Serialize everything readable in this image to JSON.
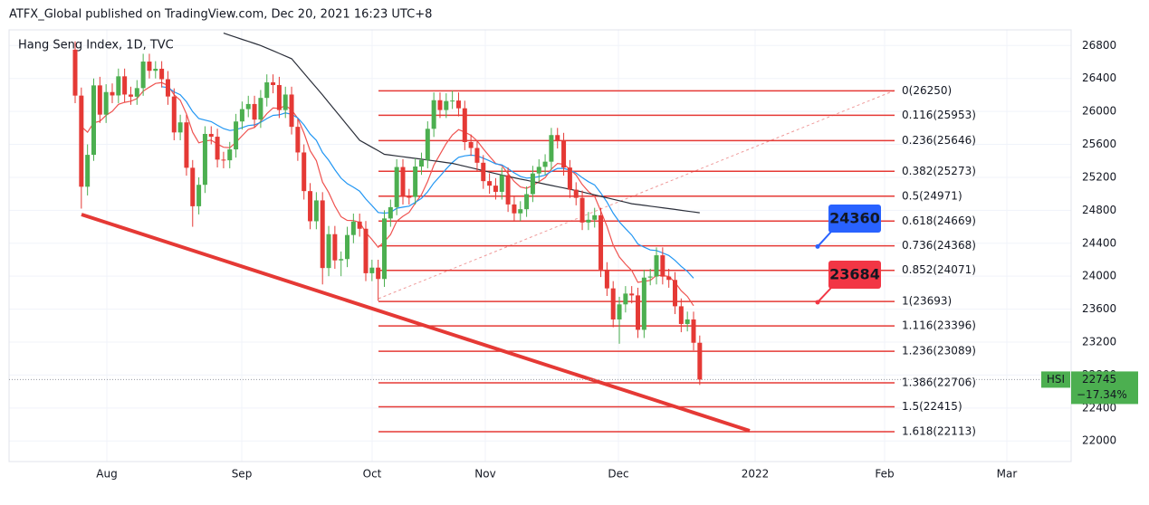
{
  "header": {
    "text": "ATFX_Global published on TradingView.com, Dec 20, 2021 16:23 UTC+8"
  },
  "chart_data": {
    "type": "candlestick",
    "title": "Hang Seng Index, 1D, TVC",
    "x_labels": [
      "Aug",
      "Sep",
      "Oct",
      "Nov",
      "Dec",
      "2022",
      "Feb",
      "Mar"
    ],
    "ylim": [
      21750,
      26990
    ],
    "yticks": [
      22000,
      22400,
      22800,
      23200,
      23600,
      24000,
      24400,
      24800,
      25200,
      25600,
      26000,
      26400,
      26800
    ],
    "up_color": "#4caf50",
    "down_color": "#e53935",
    "candles": {
      "open": [
        26750,
        26192,
        25086,
        25473,
        26316,
        25961,
        26235,
        26194,
        26426,
        26205,
        26179,
        26283,
        26605,
        26493,
        26518,
        26391,
        26181,
        25745,
        25867,
        25316,
        24849,
        25109,
        25727,
        25693,
        25415,
        25407,
        25539,
        25878,
        26028,
        26090,
        25901,
        26164,
        26353,
        26320,
        26017,
        26205,
        25813,
        25502,
        25033,
        24667,
        24920,
        24099,
        24510,
        24192,
        24208,
        24500,
        24663,
        24576,
        24036,
        24104,
        23966,
        24701,
        24838,
        25325,
        24963,
        24962,
        25331,
        25410,
        25789,
        26136,
        26017,
        26126,
        26132,
        26038,
        25628,
        25556,
        25377,
        25154,
        25099,
        25024,
        25225,
        24871,
        24763,
        24813,
        24996,
        25247,
        25327,
        25390,
        25713,
        25650,
        25319,
        25050,
        24951,
        24652,
        24685,
        24740,
        24080,
        23852,
        23475,
        23658,
        23789,
        23767,
        23349,
        23983,
        23996,
        24254,
        23995,
        23955,
        23635,
        23420,
        23475,
        23192
      ],
      "high": [
        26850,
        26290,
        25600,
        26400,
        26420,
        26330,
        26340,
        26520,
        26520,
        26300,
        26380,
        26700,
        26700,
        26610,
        26610,
        26490,
        26280,
        25960,
        25960,
        25410,
        25200,
        25820,
        25820,
        25790,
        25510,
        25630,
        25970,
        26120,
        26190,
        26190,
        26260,
        26450,
        26450,
        26420,
        26300,
        26300,
        25910,
        25600,
        25130,
        25020,
        25020,
        24610,
        24610,
        24300,
        24600,
        24760,
        24760,
        24670,
        24200,
        24200,
        24800,
        24930,
        25420,
        25420,
        25060,
        25430,
        25500,
        25880,
        26230,
        26230,
        26220,
        26250,
        26230,
        26130,
        25720,
        25650,
        25470,
        25250,
        25190,
        25320,
        25320,
        24970,
        24910,
        25090,
        25340,
        25420,
        25480,
        25800,
        25800,
        25740,
        25410,
        25140,
        25040,
        24780,
        24830,
        24830,
        24170,
        23940,
        23750,
        23880,
        23880,
        23860,
        24080,
        24090,
        24350,
        24350,
        24090,
        24050,
        23730,
        23570,
        23570,
        23280
      ],
      "low": [
        26100,
        24820,
        24980,
        25400,
        25860,
        25860,
        26100,
        26100,
        26110,
        26080,
        26080,
        26190,
        26400,
        26400,
        26290,
        26080,
        25650,
        25650,
        25220,
        24600,
        24750,
        25010,
        25600,
        25320,
        25310,
        25310,
        25440,
        25780,
        25930,
        25800,
        25800,
        26060,
        26220,
        25920,
        25920,
        25720,
        25400,
        24930,
        24570,
        24570,
        23900,
        24000,
        24090,
        24000,
        24110,
        24400,
        24480,
        23940,
        23940,
        23700,
        23870,
        24600,
        24740,
        24870,
        24870,
        24870,
        25230,
        25310,
        25690,
        25920,
        25920,
        26030,
        25940,
        25530,
        25460,
        25280,
        25060,
        25000,
        24930,
        24930,
        24780,
        24670,
        24670,
        24720,
        24900,
        25150,
        25230,
        25290,
        25550,
        25220,
        24950,
        24860,
        24560,
        24560,
        24590,
        23990,
        23760,
        23380,
        23180,
        23560,
        23670,
        23250,
        23250,
        23890,
        23900,
        23900,
        23860,
        23540,
        23320,
        23330,
        23100,
        22680
      ],
      "close": [
        26192,
        25086,
        25473,
        26316,
        25961,
        26235,
        26194,
        26426,
        26205,
        26179,
        26283,
        26605,
        26493,
        26518,
        26391,
        26181,
        25745,
        25867,
        25316,
        24849,
        25109,
        25727,
        25693,
        25415,
        25407,
        25539,
        25878,
        26028,
        26090,
        25901,
        26164,
        26353,
        26320,
        26017,
        26205,
        25813,
        25502,
        25033,
        24667,
        24920,
        24099,
        24510,
        24192,
        24208,
        24500,
        24663,
        24576,
        24036,
        24104,
        23966,
        24701,
        24838,
        25325,
        24963,
        24962,
        25331,
        25410,
        25789,
        26136,
        26017,
        26126,
        26132,
        26038,
        25628,
        25556,
        25377,
        25154,
        25099,
        25024,
        25225,
        24871,
        24763,
        24813,
        24996,
        25247,
        25327,
        25390,
        25713,
        25650,
        25319,
        25050,
        24951,
        24652,
        24685,
        24740,
        24080,
        23852,
        23475,
        23658,
        23789,
        23767,
        23349,
        23983,
        23996,
        24254,
        23995,
        23955,
        23635,
        23420,
        23475,
        23192,
        22745
      ]
    },
    "series": [
      {
        "color": "#ef5350",
        "values": [
          null,
          25817,
          25748,
          25862,
          25882,
          25953,
          26001,
          26086,
          26110,
          26124,
          26156,
          26246,
          26295,
          26340,
          26350,
          26316,
          26202,
          26135,
          25971,
          25747,
          25619,
          25641,
          25651,
          25604,
          25565,
          25560,
          25624,
          25705,
          25782,
          25806,
          25878,
          25973,
          26042,
          26037,
          26071,
          26019,
          25916,
          25739,
          25524,
          25403,
          25142,
          25016,
          24851,
          24722,
          24678,
          24675,
          24655,
          24531,
          24446,
          24350,
          24420,
          24504,
          24668,
          24727,
          24774,
          24885,
          24990,
          25150,
          25347,
          25481,
          25610,
          25714,
          25779,
          25749,
          25710,
          25643,
          25545,
          25456,
          25370,
          25341,
          25247,
          25150,
          25083,
          25066,
          25102,
          25147,
          25196,
          25299,
          25369,
          25359,
          25297,
          25228,
          25113,
          25027,
          24970,
          24792,
          24604,
          24378,
          24234,
          24145,
          24069,
          23925,
          23937,
          23949,
          24010,
          24007,
          23997,
          23925,
          23824,
          23754,
          23642,
          null
        ]
      },
      {
        "color": "#2196f3",
        "values": [
          null,
          null,
          null,
          null,
          null,
          null,
          null,
          null,
          null,
          null,
          null,
          null,
          null,
          null,
          26300,
          26289,
          26237,
          26202,
          26118,
          25997,
          25913,
          25895,
          25876,
          25832,
          25792,
          25768,
          25778,
          25802,
          25829,
          25836,
          25867,
          25913,
          25952,
          25958,
          25981,
          25965,
          25921,
          25837,
          25726,
          25649,
          25502,
          25408,
          25292,
          25189,
          25124,
          25080,
          25032,
          24937,
          24858,
          24773,
          24766,
          24773,
          24825,
          24838,
          24850,
          24896,
          24945,
          25025,
          25131,
          25215,
          25302,
          25381,
          25443,
          25461,
          25470,
          25461,
          25432,
          25400,
          25364,
          25351,
          25305,
          25254,
          25212,
          25191,
          25196,
          25209,
          25226,
          25272,
          25308,
          25309,
          25285,
          25253,
          25196,
          25147,
          25108,
          25010,
          24900,
          24765,
          24660,
          24577,
          24500,
          24391,
          24352,
          24318,
          24312,
          24282,
          24251,
          24192,
          24119,
          24058,
          23976,
          null
        ]
      },
      {
        "color": "#2a2e39",
        "values": [
          null,
          null,
          null,
          null,
          null,
          null,
          null,
          null,
          null,
          null,
          null,
          null,
          null,
          null,
          null,
          null,
          null,
          null,
          null,
          null,
          null,
          null,
          null,
          null,
          26950,
          26925,
          26900,
          26875,
          26850,
          26825,
          26800,
          26768,
          26736,
          26704,
          26672,
          26640,
          26552,
          26464,
          26376,
          26288,
          26200,
          26108,
          26017,
          25925,
          25833,
          25742,
          25650,
          25608,
          25565,
          25523,
          25480,
          25470,
          25460,
          25450,
          25440,
          25430,
          25420,
          25410,
          25400,
          25390,
          25380,
          25370,
          25352,
          25334,
          25317,
          25299,
          25281,
          25263,
          25246,
          25228,
          25210,
          25195,
          25179,
          25164,
          25148,
          25133,
          25117,
          25102,
          25086,
          25071,
          25055,
          25040,
          25022,
          25004,
          24987,
          24969,
          24951,
          24933,
          24916,
          24898,
          24880,
          24870,
          24860,
          24850,
          24840,
          24830,
          24820,
          24810,
          24800,
          24790,
          24780,
          24770
        ]
      }
    ],
    "fib_color": "#e53935",
    "fib_levels": [
      {
        "value": 26250,
        "label": "0(26250)"
      },
      {
        "value": 25953,
        "label": "0.116(25953)"
      },
      {
        "value": 25646,
        "label": "0.236(25646)"
      },
      {
        "value": 25273,
        "label": "0.382(25273)"
      },
      {
        "value": 24971,
        "label": "0.5(24971)"
      },
      {
        "value": 24669,
        "label": "0.618(24669)"
      },
      {
        "value": 24368,
        "label": "0.736(24368)"
      },
      {
        "value": 24071,
        "label": "0.852(24071)"
      },
      {
        "value": 23693,
        "label": "1(23693)"
      },
      {
        "value": 23396,
        "label": "1.116(23396)"
      },
      {
        "value": 23089,
        "label": "1.236(23089)"
      },
      {
        "value": 22706,
        "label": "1.386(22706)"
      },
      {
        "value": 22415,
        "label": "1.5(22415)"
      },
      {
        "value": 22113,
        "label": "1.618(22113)"
      }
    ],
    "annotations": [
      {
        "value": 24360,
        "color": "#2962ff"
      },
      {
        "value": 23684,
        "color": "#f23645"
      }
    ],
    "last_price": {
      "symbol": "HSI",
      "value": 22745,
      "change": "−17.34%",
      "color": "#4caf50"
    }
  }
}
